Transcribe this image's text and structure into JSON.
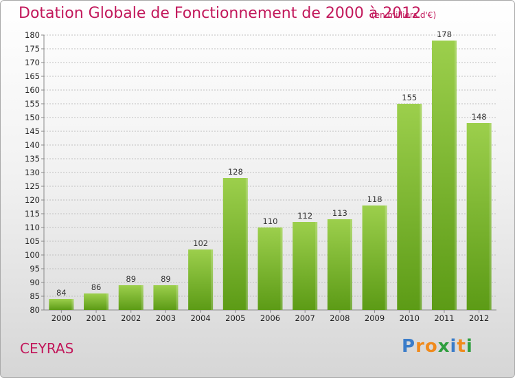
{
  "title": "Dotation Globale de Fonctionnement de 2000 à 2012",
  "unit_note": "(en milliers d'€)",
  "commune": "CEYRAS",
  "logo": {
    "text": "Proxiti",
    "letters": [
      {
        "ch": "P",
        "color": "#3a7cc9"
      },
      {
        "ch": "r",
        "color": "#f08a1c"
      },
      {
        "ch": "o",
        "color": "#f08a1c"
      },
      {
        "ch": "x",
        "color": "#2e9e3e"
      },
      {
        "ch": "i",
        "color": "#3a7cc9"
      },
      {
        "ch": "t",
        "color": "#f08a1c"
      },
      {
        "ch": "i",
        "color": "#2e9e3e"
      }
    ]
  },
  "colors": {
    "title": "#c2185b",
    "bar_top": "#9ccf4c",
    "bar_bottom": "#5c9b16",
    "grid": "#bfbfbf"
  },
  "chart_data": {
    "type": "bar",
    "title": "Dotation Globale de Fonctionnement de 2000 à 2012",
    "subtitle": "(en milliers d'€)",
    "xlabel": "",
    "ylabel": "",
    "categories": [
      "2000",
      "2001",
      "2002",
      "2003",
      "2004",
      "2005",
      "2006",
      "2007",
      "2008",
      "2009",
      "2010",
      "2011",
      "2012"
    ],
    "values": [
      84,
      86,
      89,
      89,
      102,
      128,
      110,
      112,
      113,
      118,
      155,
      178,
      148
    ],
    "ylim": [
      80,
      180
    ],
    "ytick_step": 5,
    "grid": true,
    "legend": "none"
  }
}
